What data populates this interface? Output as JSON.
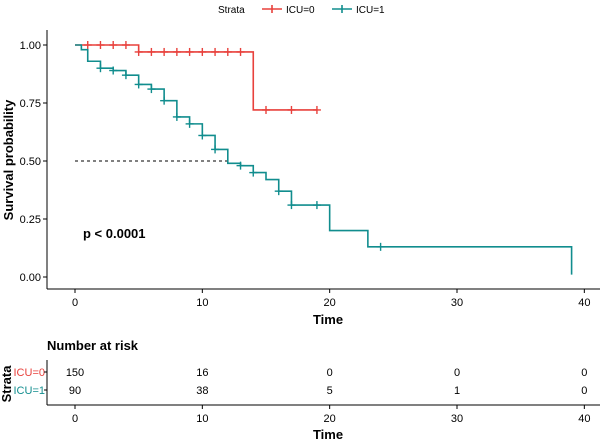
{
  "chart_data": {
    "type": "line",
    "subtype": "kaplan-meier step",
    "title": "",
    "xlabel": "Time",
    "ylabel": "Survival probability",
    "xlim": [
      -2,
      41
    ],
    "ylim": [
      0,
      1.05
    ],
    "x_ticks": [
      0,
      10,
      20,
      30,
      40
    ],
    "y_ticks": [
      "0.00",
      "0.25",
      "0.50",
      "0.75",
      "1.00"
    ],
    "legend_title": "Strata",
    "legend_position": "top",
    "annotation": "p < 0.0001",
    "median_reference": {
      "y": 0.5,
      "x_end": 12
    },
    "series": [
      {
        "name": "ICU=0",
        "color": "#e8413c",
        "steps": [
          [
            0,
            1.0
          ],
          [
            5,
            0.97
          ],
          [
            14,
            0.72
          ],
          [
            19,
            0.72
          ]
        ],
        "censor_times": [
          1,
          2,
          3,
          4,
          5,
          6,
          7,
          8,
          9,
          10,
          11,
          12,
          13,
          15,
          17,
          19
        ],
        "end_drop": false
      },
      {
        "name": "ICU=1",
        "color": "#118d8e",
        "steps": [
          [
            0,
            1.0
          ],
          [
            0.5,
            0.98
          ],
          [
            1,
            0.93
          ],
          [
            2,
            0.9
          ],
          [
            3,
            0.89
          ],
          [
            4,
            0.87
          ],
          [
            5,
            0.83
          ],
          [
            6,
            0.81
          ],
          [
            7,
            0.76
          ],
          [
            8,
            0.69
          ],
          [
            9,
            0.66
          ],
          [
            10,
            0.61
          ],
          [
            11,
            0.55
          ],
          [
            12,
            0.49
          ],
          [
            13,
            0.48
          ],
          [
            14,
            0.45
          ],
          [
            15,
            0.42
          ],
          [
            16,
            0.37
          ],
          [
            17,
            0.31
          ],
          [
            20,
            0.2
          ],
          [
            23,
            0.13
          ],
          [
            39,
            0.13
          ]
        ],
        "censor_times": [
          2,
          3,
          4,
          5,
          6,
          7,
          8,
          9,
          10,
          11,
          13,
          14,
          16,
          17,
          19,
          24
        ],
        "end_drop": true
      }
    ],
    "risk_table": {
      "title": "Number at risk",
      "y_axis_label": "Strata",
      "times": [
        0,
        10,
        20,
        30,
        40
      ],
      "rows": [
        {
          "label": "ICU=0",
          "color": "#e8413c",
          "counts": [
            "150",
            "16",
            "0",
            "0",
            "0"
          ]
        },
        {
          "label": "ICU=1",
          "color": "#118d8e",
          "counts": [
            "90",
            "38",
            "5",
            "1",
            "0"
          ]
        }
      ],
      "xlabel": "Time"
    }
  }
}
